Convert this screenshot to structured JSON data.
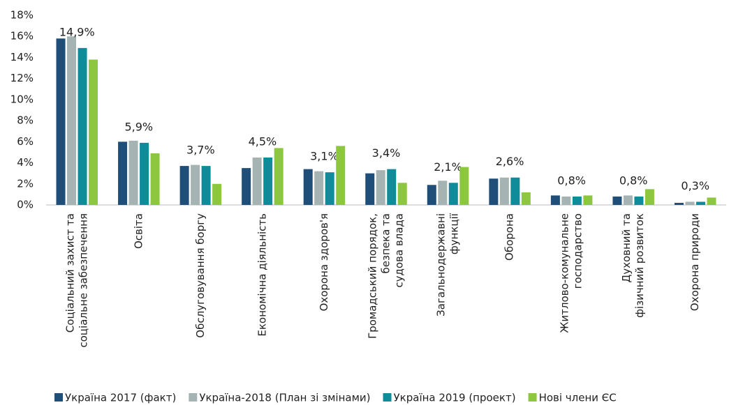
{
  "chart_data": {
    "type": "bar",
    "categories": [
      [
        "Соціальний захист та",
        "соціальне забезпечення"
      ],
      [
        "Освіта"
      ],
      [
        "Обслуговування боргу"
      ],
      [
        "Економічна діяльність"
      ],
      [
        "Охорона здоров'я"
      ],
      [
        "Громадський порядок,",
        "безпека та",
        "судова влада"
      ],
      [
        "Загальнодержавні",
        "функції"
      ],
      [
        "Оборона"
      ],
      [
        "Житлово-комунальне",
        "господарство"
      ],
      [
        "Духовний та",
        "фізичний розвиток"
      ],
      [
        "Охорона природи"
      ]
    ],
    "series": [
      {
        "name": "Україна 2017 (факт)",
        "color": "#1f4e79",
        "values": [
          15.8,
          6.0,
          3.7,
          3.5,
          3.4,
          3.0,
          1.9,
          2.5,
          0.9,
          0.8,
          0.2
        ]
      },
      {
        "name": "Україна-2018 (План зі змінами)",
        "color": "#a5b3b3",
        "values": [
          16.0,
          6.1,
          3.8,
          4.5,
          3.2,
          3.3,
          2.3,
          2.6,
          0.8,
          0.9,
          0.3
        ]
      },
      {
        "name": "Україна 2019 (проект)",
        "color": "#0f8c9a",
        "values": [
          14.9,
          5.9,
          3.7,
          4.5,
          3.1,
          3.4,
          2.1,
          2.6,
          0.8,
          0.8,
          0.3
        ],
        "value_labels": [
          "14,9%",
          "5,9%",
          "3,7%",
          "4,5%",
          "3,1%",
          "3,4%",
          "2,1%",
          "2,6%",
          "0,8%",
          "0,8%",
          "0,3%"
        ]
      },
      {
        "name": "Нові члени ЄС",
        "color": "#8dc63f",
        "values": [
          13.8,
          4.9,
          2.0,
          5.4,
          5.6,
          2.1,
          3.6,
          1.2,
          0.9,
          1.5,
          0.7
        ]
      }
    ],
    "ylim": [
      0,
      18
    ],
    "yticks": [
      {
        "value": 0,
        "label": "0%"
      },
      {
        "value": 2,
        "label": "2%"
      },
      {
        "value": 4,
        "label": "4%"
      },
      {
        "value": 6,
        "label": "6%"
      },
      {
        "value": 8,
        "label": "8%"
      },
      {
        "value": 10,
        "label": "10%"
      },
      {
        "value": 12,
        "label": "12%"
      },
      {
        "value": 14,
        "label": "14%"
      },
      {
        "value": 16,
        "label": "16%"
      },
      {
        "value": 18,
        "label": "18%"
      }
    ],
    "grid": false,
    "legend": "bottom"
  }
}
